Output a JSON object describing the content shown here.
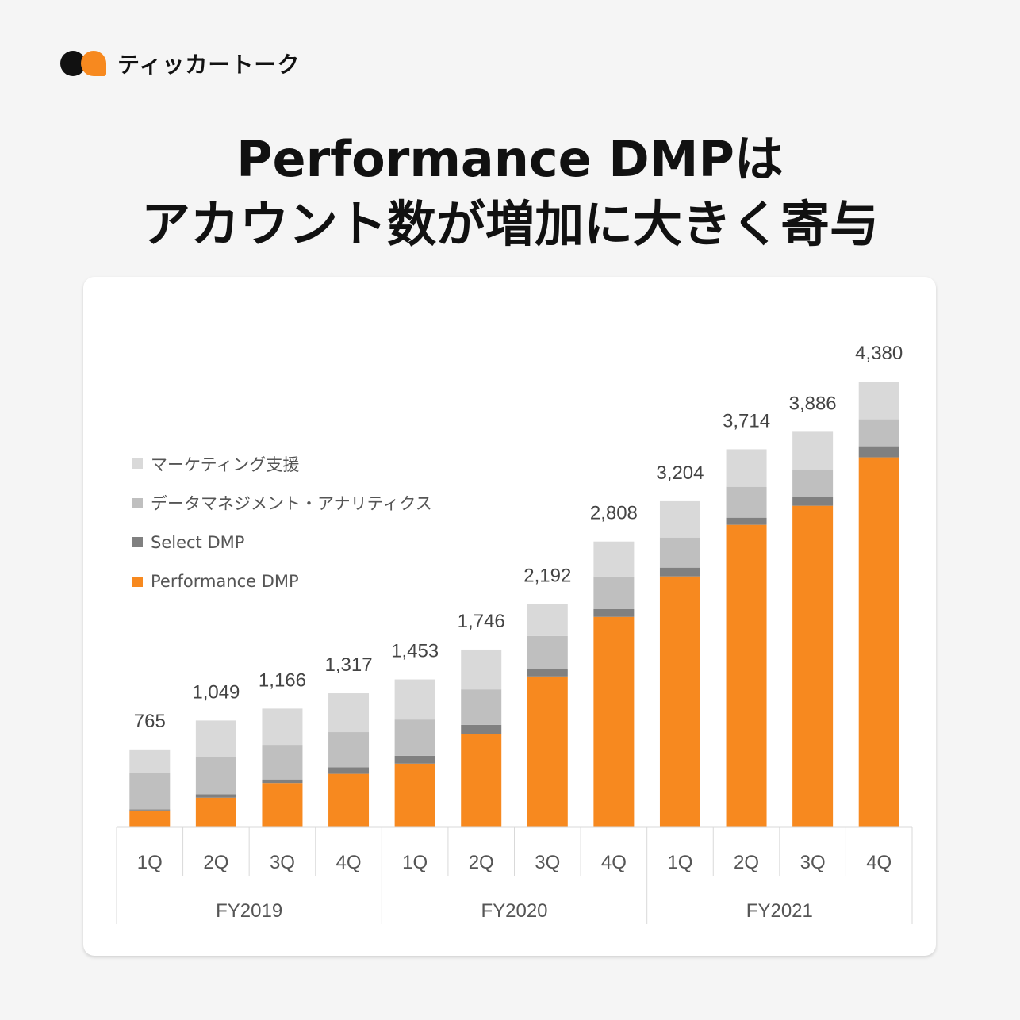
{
  "brand": {
    "name": "ティッカートーク"
  },
  "title": {
    "line1": "Performance DMPは",
    "line2": "アカウント数が増加に大きく寄与"
  },
  "chart_data": {
    "type": "bar",
    "stacked": true,
    "categories": [
      "1Q",
      "2Q",
      "3Q",
      "4Q",
      "1Q",
      "2Q",
      "3Q",
      "4Q",
      "1Q",
      "2Q",
      "3Q",
      "4Q"
    ],
    "groups": [
      {
        "label": "FY2019",
        "count": 4
      },
      {
        "label": "FY2020",
        "count": 4
      },
      {
        "label": "FY2021",
        "count": 4
      }
    ],
    "totals": [
      765,
      1049,
      1166,
      1317,
      1453,
      1746,
      2192,
      2808,
      3204,
      3714,
      3886,
      4380
    ],
    "total_labels": [
      "765",
      "1,049",
      "1,166",
      "1,317",
      "1,453",
      "1,746",
      "2,192",
      "2,808",
      "3,204",
      "3,714",
      "3,886",
      "4,380"
    ],
    "series": [
      {
        "name": "Performance DMP",
        "color": "#f7891f",
        "values": [
          165,
          290,
          435,
          525,
          625,
          918,
          1482,
          2067,
          2465,
          2972,
          3159,
          3635
        ]
      },
      {
        "name": "Select DMP",
        "color": "#808080",
        "values": [
          10,
          35,
          35,
          65,
          78,
          88,
          70,
          78,
          86,
          70,
          86,
          109
        ]
      },
      {
        "name": "データマネジメント・アナリティクス",
        "color": "#bfbfbf",
        "values": [
          355,
          365,
          340,
          345,
          356,
          349,
          328,
          320,
          296,
          304,
          265,
          265
        ]
      },
      {
        "name": "マーケティング支援",
        "color": "#d9d9d9",
        "values": [
          235,
          359,
          356,
          382,
          394,
          391,
          312,
          343,
          357,
          368,
          376,
          371
        ]
      }
    ],
    "legend_order": [
      "マーケティング支援",
      "データマネジメント・アナリティクス",
      "Select DMP",
      "Performance DMP"
    ],
    "legend_position": "left",
    "ylim": [
      0,
      4500
    ],
    "grid": false
  }
}
